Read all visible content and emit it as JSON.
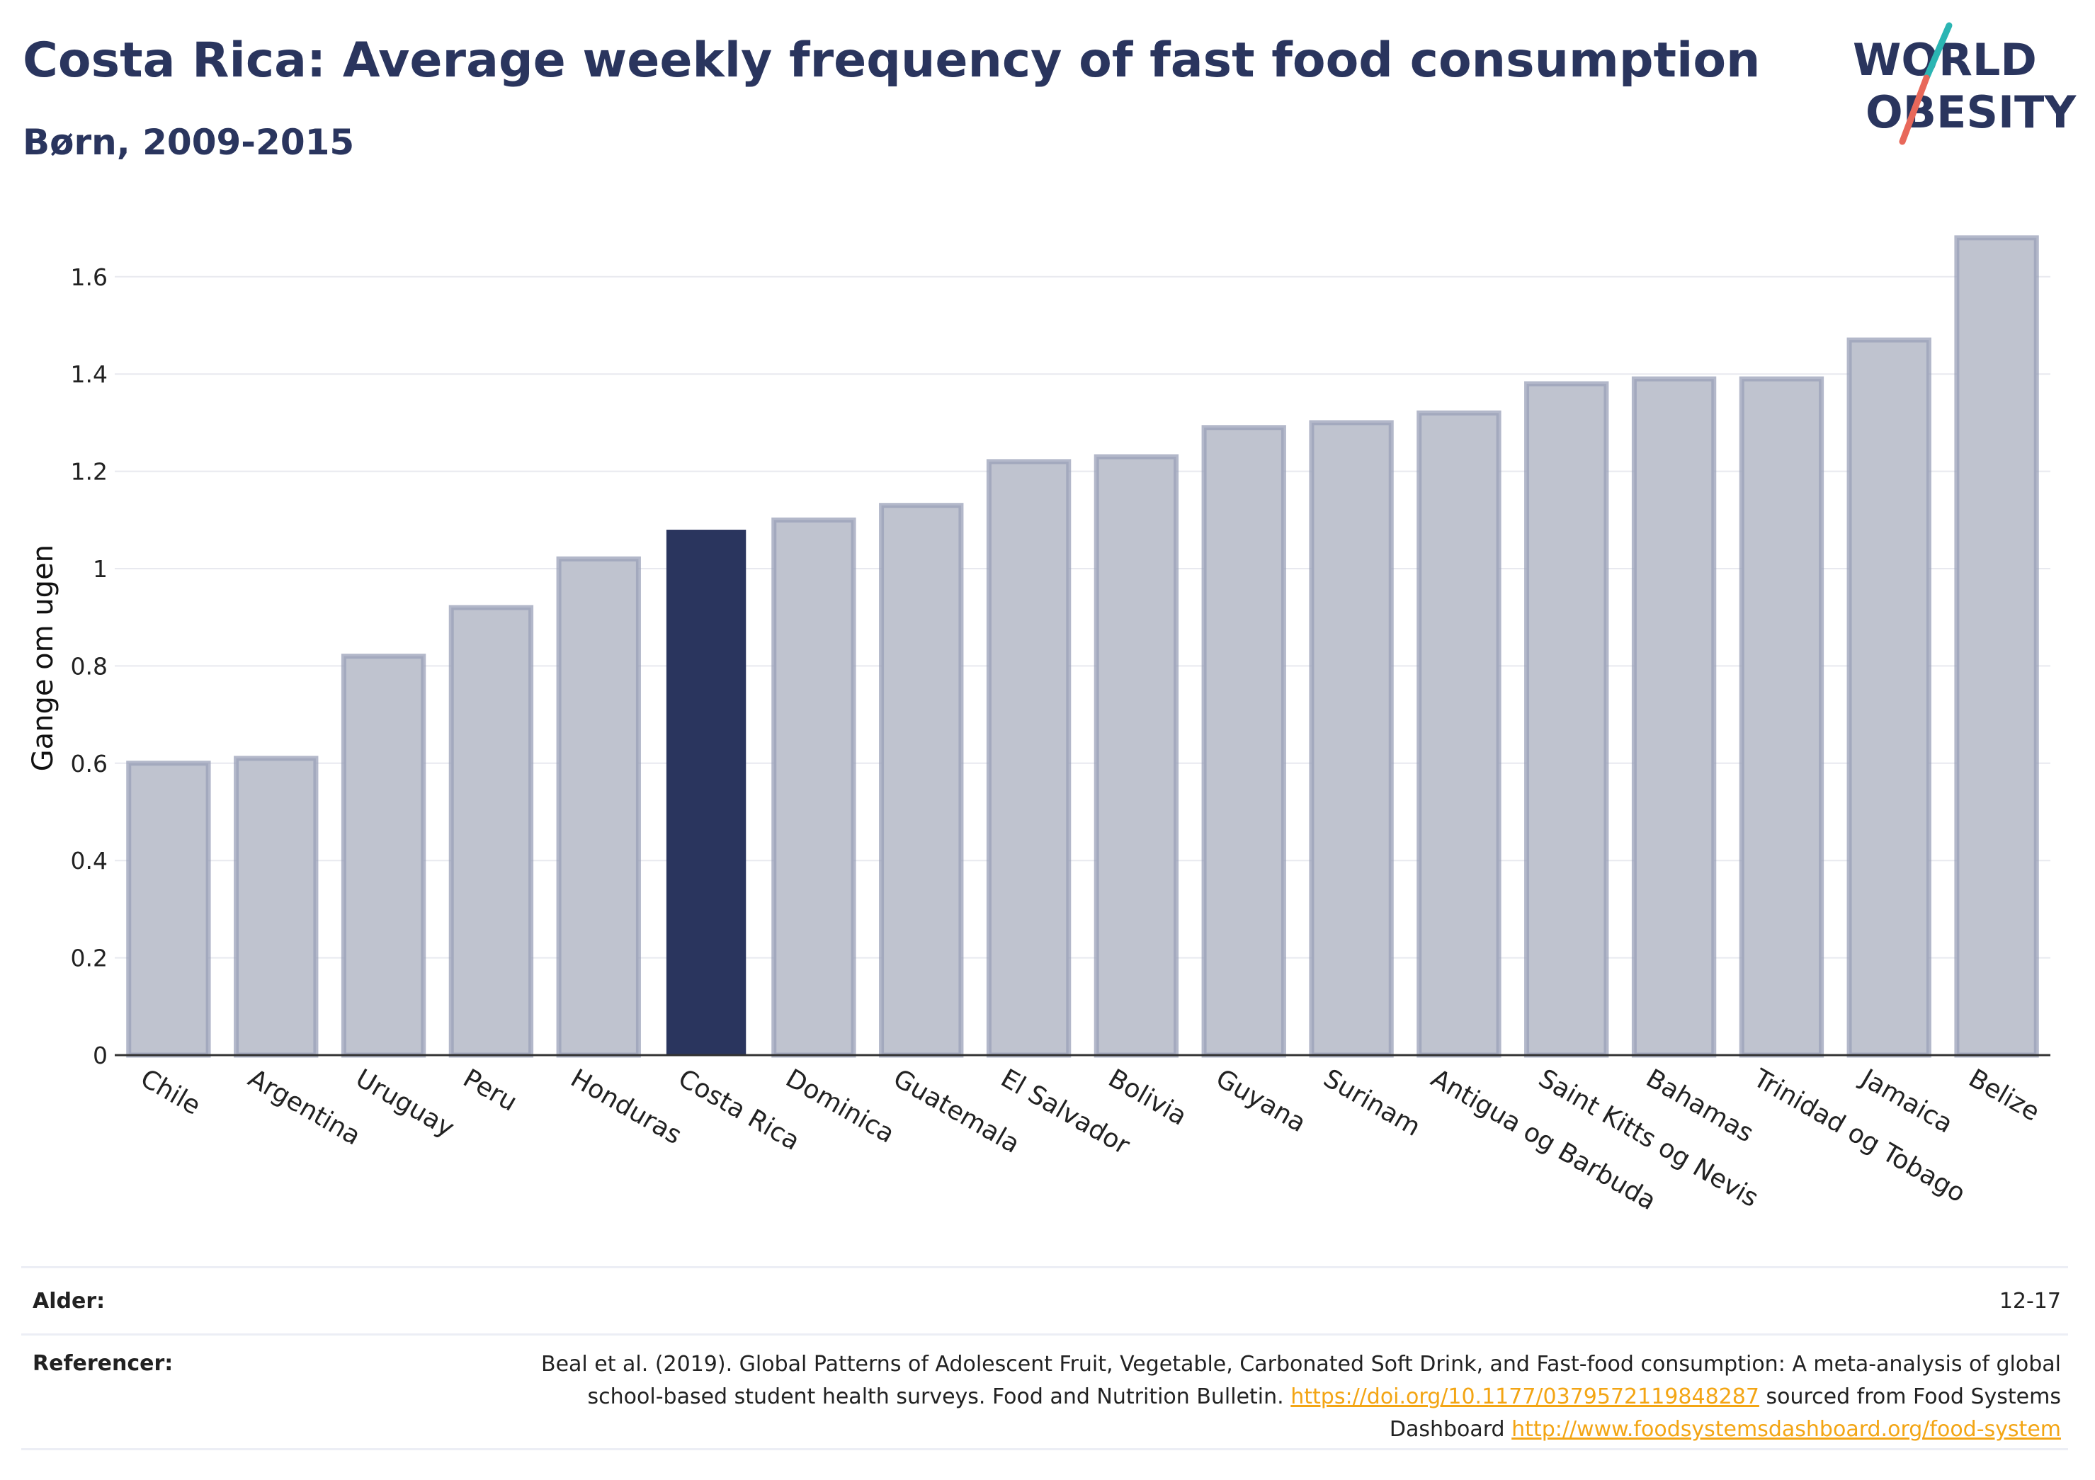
{
  "title": "Costa Rica: Average weekly frequency of fast food consumption",
  "subtitle": "Børn, 2009-2015",
  "logo": {
    "line1": "WORLD",
    "line2": "OBESITY",
    "accent_colors": [
      "#2bb5b3",
      "#e8685a"
    ]
  },
  "chart_data": {
    "type": "bar",
    "ylabel": "Gange om ugen",
    "xlabel": "",
    "ylim": [
      0,
      1.72
    ],
    "yticks": [
      0,
      0.2,
      0.4,
      0.6,
      0.8,
      1,
      1.2,
      1.4,
      1.6
    ],
    "ytick_labels": [
      "0",
      "0.2",
      "0.4",
      "0.6",
      "0.8",
      "1",
      "1.2",
      "1.4",
      "1.6"
    ],
    "grid": true,
    "highlight": "Costa Rica",
    "colors": {
      "bar": "#bfc3cf",
      "bar_border": "#9aa0b8",
      "highlight": "#2a355e"
    },
    "categories": [
      "Chile",
      "Argentina",
      "Uruguay",
      "Peru",
      "Honduras",
      "Costa Rica",
      "Dominica",
      "Guatemala",
      "El Salvador",
      "Bolivia",
      "Guyana",
      "Surinam",
      "Antigua og Barbuda",
      "Saint Kitts og Nevis",
      "Bahamas",
      "Trinidad og Tobago",
      "Jamaica",
      "Belize"
    ],
    "values": [
      0.6,
      0.61,
      0.82,
      0.92,
      1.02,
      1.08,
      1.1,
      1.13,
      1.22,
      1.23,
      1.29,
      1.3,
      1.32,
      1.38,
      1.39,
      1.39,
      1.47,
      1.68
    ]
  },
  "meta": {
    "age_label": "Alder:",
    "age_value": "12-17",
    "ref_label": "Referencer:",
    "ref_text_1": "Beal et al. (2019). Global Patterns of Adolescent Fruit, Vegetable, Carbonated Soft Drink, and Fast-food consumption: A meta-analysis of global school-based student health surveys. Food and Nutrition Bulletin.",
    "ref_link_1": "https://doi.org/10.1177/0379572119848287",
    "ref_text_2": "sourced from Food Systems Dashboard",
    "ref_link_2": "http://www.foodsystemsdashboard.org/food-system"
  }
}
